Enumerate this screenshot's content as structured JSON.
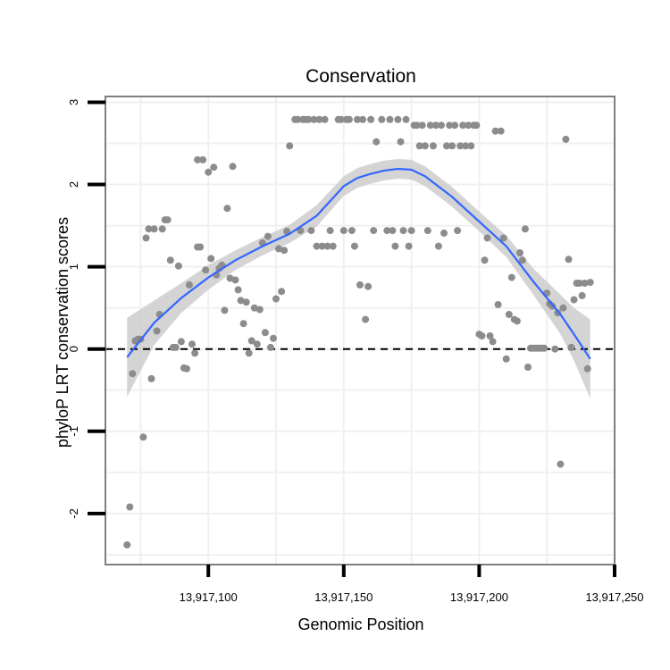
{
  "chart_data": {
    "type": "scatter",
    "title": "Conservation",
    "xlabel": "Genomic Position",
    "ylabel": "phyloP LRT conservation scores",
    "xlim": [
      13917062,
      13917250
    ],
    "ylim": [
      -2.62,
      3.07
    ],
    "x_ticks": [
      13917100,
      13917150,
      13917200,
      13917250
    ],
    "x_tick_labels": [
      "13,917,100",
      "13,917,150",
      "13,917,200",
      "13,917,250"
    ],
    "y_ticks": [
      -2,
      -1,
      0,
      1,
      2,
      3
    ],
    "y_tick_labels": [
      "-2",
      "-1",
      "0",
      "1",
      "2",
      "3"
    ],
    "reference_line": {
      "y": 0,
      "style": "dashed"
    },
    "grid": true,
    "colors": {
      "points": "#8c8c8c",
      "smooth_line": "#3366ff",
      "ribbon": "#cccccc",
      "panel_border": "#7f7f7f",
      "grid": "#f0f0f0"
    },
    "points": [
      {
        "x": 13917070,
        "y": -2.38
      },
      {
        "x": 13917071,
        "y": -1.92
      },
      {
        "x": 13917072,
        "y": -0.3
      },
      {
        "x": 13917073,
        "y": 0.1
      },
      {
        "x": 13917074,
        "y": 0.12
      },
      {
        "x": 13917075,
        "y": 0.12
      },
      {
        "x": 13917076,
        "y": -1.07
      },
      {
        "x": 13917077,
        "y": 1.35
      },
      {
        "x": 13917078,
        "y": 1.46
      },
      {
        "x": 13917079,
        "y": -0.36
      },
      {
        "x": 13917080,
        "y": 1.46
      },
      {
        "x": 13917081,
        "y": 0.22
      },
      {
        "x": 13917082,
        "y": 0.42
      },
      {
        "x": 13917083,
        "y": 1.46
      },
      {
        "x": 13917084,
        "y": 1.57
      },
      {
        "x": 13917085,
        "y": 1.57
      },
      {
        "x": 13917086,
        "y": 1.08
      },
      {
        "x": 13917087,
        "y": 0.02
      },
      {
        "x": 13917088,
        "y": 0.02
      },
      {
        "x": 13917089,
        "y": 1.01
      },
      {
        "x": 13917090,
        "y": 0.09
      },
      {
        "x": 13917091,
        "y": -0.23
      },
      {
        "x": 13917092,
        "y": -0.24
      },
      {
        "x": 13917093,
        "y": 0.78
      },
      {
        "x": 13917094,
        "y": 0.06
      },
      {
        "x": 13917095,
        "y": -0.05
      },
      {
        "x": 13917096,
        "y": 1.24
      },
      {
        "x": 13917097,
        "y": 1.24
      },
      {
        "x": 13917096,
        "y": 2.3
      },
      {
        "x": 13917098,
        "y": 2.3
      },
      {
        "x": 13917099,
        "y": 0.96
      },
      {
        "x": 13917100,
        "y": 2.15
      },
      {
        "x": 13917101,
        "y": 1.1
      },
      {
        "x": 13917102,
        "y": 2.21
      },
      {
        "x": 13917103,
        "y": 0.9
      },
      {
        "x": 13917104,
        "y": 0.98
      },
      {
        "x": 13917105,
        "y": 1.02
      },
      {
        "x": 13917106,
        "y": 0.47
      },
      {
        "x": 13917107,
        "y": 1.71
      },
      {
        "x": 13917108,
        "y": 0.86
      },
      {
        "x": 13917109,
        "y": 2.22
      },
      {
        "x": 13917110,
        "y": 0.84
      },
      {
        "x": 13917111,
        "y": 0.72
      },
      {
        "x": 13917112,
        "y": 0.59
      },
      {
        "x": 13917113,
        "y": 0.31
      },
      {
        "x": 13917114,
        "y": 0.57
      },
      {
        "x": 13917115,
        "y": -0.05
      },
      {
        "x": 13917116,
        "y": 0.1
      },
      {
        "x": 13917117,
        "y": 0.5
      },
      {
        "x": 13917118,
        "y": 0.06
      },
      {
        "x": 13917119,
        "y": 0.48
      },
      {
        "x": 13917120,
        "y": 1.29
      },
      {
        "x": 13917121,
        "y": 0.2
      },
      {
        "x": 13917122,
        "y": 1.37
      },
      {
        "x": 13917123,
        "y": 0.02
      },
      {
        "x": 13917124,
        "y": 0.13
      },
      {
        "x": 13917125,
        "y": 0.61
      },
      {
        "x": 13917126,
        "y": 1.22
      },
      {
        "x": 13917127,
        "y": 0.7
      },
      {
        "x": 13917128,
        "y": 1.2
      },
      {
        "x": 13917129,
        "y": 1.43
      },
      {
        "x": 13917130,
        "y": 2.47
      },
      {
        "x": 13917132,
        "y": 2.79
      },
      {
        "x": 13917133,
        "y": 2.79
      },
      {
        "x": 13917134,
        "y": 1.44
      },
      {
        "x": 13917135,
        "y": 2.79
      },
      {
        "x": 13917136,
        "y": 2.79
      },
      {
        "x": 13917137,
        "y": 2.79
      },
      {
        "x": 13917138,
        "y": 1.44
      },
      {
        "x": 13917139,
        "y": 2.79
      },
      {
        "x": 13917140,
        "y": 1.25
      },
      {
        "x": 13917141,
        "y": 2.79
      },
      {
        "x": 13917142,
        "y": 1.25
      },
      {
        "x": 13917143,
        "y": 2.79
      },
      {
        "x": 13917144,
        "y": 1.25
      },
      {
        "x": 13917145,
        "y": 1.44
      },
      {
        "x": 13917146,
        "y": 1.25
      },
      {
        "x": 13917148,
        "y": 2.79
      },
      {
        "x": 13917149,
        "y": 2.79
      },
      {
        "x": 13917150,
        "y": 1.44
      },
      {
        "x": 13917151,
        "y": 2.79
      },
      {
        "x": 13917152,
        "y": 2.79
      },
      {
        "x": 13917153,
        "y": 1.44
      },
      {
        "x": 13917154,
        "y": 1.25
      },
      {
        "x": 13917155,
        "y": 2.79
      },
      {
        "x": 13917156,
        "y": 0.78
      },
      {
        "x": 13917157,
        "y": 2.79
      },
      {
        "x": 13917158,
        "y": 0.36
      },
      {
        "x": 13917159,
        "y": 0.76
      },
      {
        "x": 13917160,
        "y": 2.79
      },
      {
        "x": 13917161,
        "y": 1.44
      },
      {
        "x": 13917162,
        "y": 2.52
      },
      {
        "x": 13917164,
        "y": 2.79
      },
      {
        "x": 13917166,
        "y": 1.44
      },
      {
        "x": 13917167,
        "y": 2.79
      },
      {
        "x": 13917168,
        "y": 1.44
      },
      {
        "x": 13917169,
        "y": 1.25
      },
      {
        "x": 13917170,
        "y": 2.79
      },
      {
        "x": 13917171,
        "y": 2.52
      },
      {
        "x": 13917172,
        "y": 1.44
      },
      {
        "x": 13917173,
        "y": 2.79
      },
      {
        "x": 13917174,
        "y": 1.25
      },
      {
        "x": 13917175,
        "y": 1.44
      },
      {
        "x": 13917176,
        "y": 2.72
      },
      {
        "x": 13917177,
        "y": 2.72
      },
      {
        "x": 13917178,
        "y": 2.47
      },
      {
        "x": 13917179,
        "y": 2.72
      },
      {
        "x": 13917180,
        "y": 2.47
      },
      {
        "x": 13917181,
        "y": 1.44
      },
      {
        "x": 13917182,
        "y": 2.72
      },
      {
        "x": 13917183,
        "y": 2.47
      },
      {
        "x": 13917184,
        "y": 2.72
      },
      {
        "x": 13917185,
        "y": 1.25
      },
      {
        "x": 13917186,
        "y": 2.72
      },
      {
        "x": 13917187,
        "y": 1.41
      },
      {
        "x": 13917188,
        "y": 2.47
      },
      {
        "x": 13917189,
        "y": 2.72
      },
      {
        "x": 13917190,
        "y": 2.47
      },
      {
        "x": 13917191,
        "y": 2.72
      },
      {
        "x": 13917192,
        "y": 1.44
      },
      {
        "x": 13917193,
        "y": 2.47
      },
      {
        "x": 13917194,
        "y": 2.72
      },
      {
        "x": 13917195,
        "y": 2.47
      },
      {
        "x": 13917196,
        "y": 2.72
      },
      {
        "x": 13917197,
        "y": 2.47
      },
      {
        "x": 13917198,
        "y": 2.72
      },
      {
        "x": 13917199,
        "y": 2.72
      },
      {
        "x": 13917200,
        "y": 0.18
      },
      {
        "x": 13917201,
        "y": 0.16
      },
      {
        "x": 13917202,
        "y": 1.08
      },
      {
        "x": 13917203,
        "y": 1.35
      },
      {
        "x": 13917204,
        "y": 0.16
      },
      {
        "x": 13917205,
        "y": 0.09
      },
      {
        "x": 13917206,
        "y": 2.65
      },
      {
        "x": 13917207,
        "y": 0.54
      },
      {
        "x": 13917208,
        "y": 2.65
      },
      {
        "x": 13917209,
        "y": 1.35
      },
      {
        "x": 13917210,
        "y": -0.12
      },
      {
        "x": 13917211,
        "y": 0.42
      },
      {
        "x": 13917212,
        "y": 0.87
      },
      {
        "x": 13917213,
        "y": 0.36
      },
      {
        "x": 13917214,
        "y": 0.34
      },
      {
        "x": 13917215,
        "y": 1.17
      },
      {
        "x": 13917216,
        "y": 1.08
      },
      {
        "x": 13917217,
        "y": 1.46
      },
      {
        "x": 13917218,
        "y": -0.22
      },
      {
        "x": 13917219,
        "y": 0.01
      },
      {
        "x": 13917220,
        "y": 0.01
      },
      {
        "x": 13917221,
        "y": 0.01
      },
      {
        "x": 13917222,
        "y": 0.01
      },
      {
        "x": 13917223,
        "y": 0.01
      },
      {
        "x": 13917224,
        "y": 0.01
      },
      {
        "x": 13917225,
        "y": 0.68
      },
      {
        "x": 13917226,
        "y": 0.55
      },
      {
        "x": 13917227,
        "y": 0.52
      },
      {
        "x": 13917228,
        "y": 0.0
      },
      {
        "x": 13917229,
        "y": 0.44
      },
      {
        "x": 13917230,
        "y": -1.4
      },
      {
        "x": 13917231,
        "y": 0.5
      },
      {
        "x": 13917232,
        "y": 2.55
      },
      {
        "x": 13917233,
        "y": 1.09
      },
      {
        "x": 13917234,
        "y": 0.02
      },
      {
        "x": 13917235,
        "y": 0.6
      },
      {
        "x": 13917236,
        "y": 0.8
      },
      {
        "x": 13917237,
        "y": 0.8
      },
      {
        "x": 13917238,
        "y": 0.65
      },
      {
        "x": 13917239,
        "y": 0.8
      },
      {
        "x": 13917240,
        "y": -0.24
      },
      {
        "x": 13917241,
        "y": 0.81
      }
    ],
    "smooth": {
      "x": [
        13917070,
        13917080,
        13917090,
        13917100,
        13917110,
        13917120,
        13917130,
        13917140,
        13917150,
        13917155,
        13917160,
        13917165,
        13917170,
        13917175,
        13917180,
        13917190,
        13917200,
        13917210,
        13917220,
        13917230,
        13917235,
        13917241
      ],
      "y": [
        -0.1,
        0.32,
        0.62,
        0.87,
        1.08,
        1.25,
        1.4,
        1.62,
        1.98,
        2.08,
        2.13,
        2.17,
        2.19,
        2.18,
        2.1,
        1.85,
        1.55,
        1.25,
        0.82,
        0.42,
        0.18,
        -0.12
      ],
      "lower": [
        -0.58,
        0.05,
        0.44,
        0.72,
        0.96,
        1.14,
        1.29,
        1.49,
        1.86,
        1.96,
        2.01,
        2.05,
        2.07,
        2.06,
        1.98,
        1.73,
        1.43,
        1.12,
        0.66,
        0.18,
        -0.14,
        -0.6
      ],
      "upper": [
        0.38,
        0.59,
        0.8,
        1.02,
        1.2,
        1.36,
        1.51,
        1.75,
        2.1,
        2.2,
        2.25,
        2.29,
        2.31,
        2.3,
        2.22,
        1.97,
        1.67,
        1.38,
        0.98,
        0.66,
        0.5,
        0.36
      ]
    }
  }
}
